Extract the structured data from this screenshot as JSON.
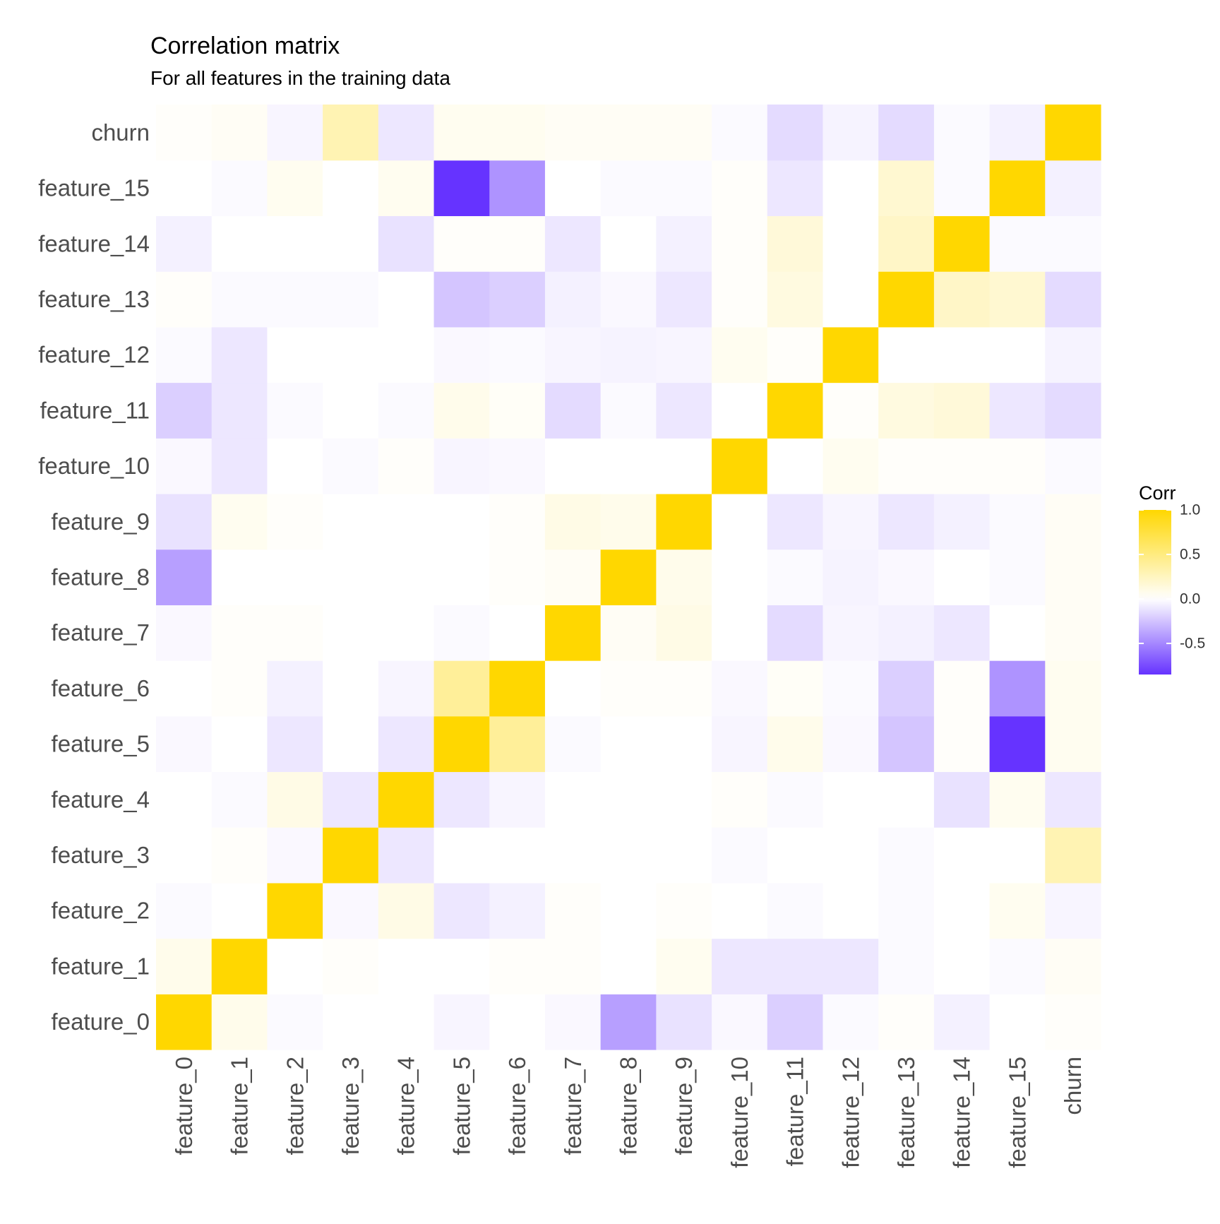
{
  "chart_data": {
    "type": "heatmap",
    "title": "Correlation matrix",
    "subtitle": "For all features in the training data",
    "variables": [
      "feature_0",
      "feature_1",
      "feature_2",
      "feature_3",
      "feature_4",
      "feature_5",
      "feature_6",
      "feature_7",
      "feature_8",
      "feature_9",
      "feature_10",
      "feature_11",
      "feature_12",
      "feature_13",
      "feature_14",
      "feature_15",
      "churn"
    ],
    "matrix": [
      [
        1.0,
        0.08,
        -0.02,
        0.0,
        0.0,
        -0.04,
        0.0,
        -0.03,
        -0.4,
        -0.12,
        -0.03,
        -0.2,
        -0.02,
        0.02,
        -0.06,
        0.0,
        0.02
      ],
      [
        0.08,
        1.0,
        0.0,
        0.02,
        0.0,
        0.0,
        0.02,
        0.02,
        0.0,
        0.06,
        -0.1,
        -0.1,
        -0.1,
        -0.02,
        0.0,
        -0.02,
        0.04
      ],
      [
        -0.02,
        0.0,
        1.0,
        -0.03,
        0.1,
        -0.1,
        -0.06,
        0.02,
        0.0,
        0.02,
        0.0,
        -0.02,
        0.0,
        -0.02,
        0.0,
        0.06,
        -0.04
      ],
      [
        0.0,
        0.02,
        -0.03,
        1.0,
        -0.1,
        0.0,
        0.0,
        0.0,
        0.0,
        0.0,
        -0.02,
        0.0,
        0.0,
        -0.02,
        0.0,
        0.0,
        0.3
      ],
      [
        0.0,
        -0.02,
        0.1,
        -0.1,
        1.0,
        -0.1,
        -0.04,
        0.0,
        0.0,
        0.0,
        0.02,
        -0.02,
        0.0,
        0.0,
        -0.12,
        0.06,
        -0.1
      ],
      [
        -0.03,
        0.0,
        -0.1,
        0.0,
        -0.1,
        1.0,
        0.4,
        -0.02,
        0.0,
        0.0,
        -0.04,
        0.08,
        -0.03,
        -0.24,
        0.02,
        -0.85,
        0.06
      ],
      [
        0.0,
        0.02,
        -0.06,
        0.0,
        -0.04,
        0.4,
        1.0,
        0.0,
        0.02,
        0.02,
        -0.03,
        0.03,
        -0.02,
        -0.2,
        0.02,
        -0.45,
        0.06
      ],
      [
        -0.03,
        0.02,
        0.02,
        0.0,
        0.0,
        -0.02,
        0.0,
        1.0,
        0.04,
        0.1,
        0.0,
        -0.15,
        -0.04,
        -0.06,
        -0.1,
        0.0,
        0.04
      ],
      [
        -0.4,
        0.0,
        0.0,
        0.0,
        0.0,
        0.0,
        0.02,
        0.04,
        1.0,
        0.08,
        0.0,
        -0.02,
        -0.05,
        -0.03,
        0.0,
        -0.02,
        0.04
      ],
      [
        -0.12,
        0.06,
        0.02,
        0.0,
        0.0,
        0.0,
        0.02,
        0.1,
        0.08,
        1.0,
        0.0,
        -0.1,
        -0.04,
        -0.1,
        -0.06,
        -0.02,
        0.04
      ],
      [
        -0.03,
        -0.1,
        0.0,
        -0.02,
        0.02,
        -0.04,
        -0.03,
        0.0,
        0.0,
        0.0,
        1.0,
        0.0,
        0.06,
        0.02,
        0.02,
        0.02,
        -0.02
      ],
      [
        -0.2,
        -0.1,
        -0.02,
        0.0,
        -0.02,
        0.08,
        0.03,
        -0.15,
        -0.02,
        -0.1,
        0.0,
        1.0,
        0.02,
        0.12,
        0.15,
        -0.1,
        -0.15
      ],
      [
        -0.02,
        -0.1,
        0.0,
        0.0,
        0.0,
        -0.03,
        -0.02,
        -0.04,
        -0.05,
        -0.04,
        0.06,
        0.02,
        1.0,
        0.0,
        0.0,
        0.0,
        -0.05
      ],
      [
        0.02,
        -0.02,
        -0.02,
        -0.02,
        0.0,
        -0.24,
        -0.2,
        -0.06,
        -0.03,
        -0.1,
        0.02,
        0.12,
        0.0,
        1.0,
        0.22,
        0.18,
        -0.15
      ],
      [
        -0.06,
        0.0,
        0.0,
        0.0,
        -0.12,
        0.02,
        0.02,
        -0.1,
        0.0,
        -0.06,
        0.02,
        0.15,
        0.0,
        0.22,
        1.0,
        -0.02,
        -0.02
      ],
      [
        0.0,
        -0.02,
        0.06,
        0.0,
        0.06,
        -0.85,
        -0.45,
        0.0,
        -0.02,
        -0.02,
        0.02,
        -0.1,
        0.0,
        0.18,
        -0.02,
        1.0,
        -0.06
      ],
      [
        0.02,
        0.04,
        -0.04,
        0.3,
        -0.1,
        0.06,
        0.06,
        0.04,
        0.04,
        0.04,
        -0.02,
        -0.15,
        -0.05,
        -0.15,
        -0.02,
        -0.06,
        1.0
      ]
    ],
    "colorscale": {
      "low": "#6633ff",
      "mid": "#ffffff",
      "high": "#ffd700",
      "min": -0.85,
      "max": 1.0
    },
    "legend": {
      "title": "Corr",
      "ticks": [
        1.0,
        0.5,
        0.0,
        -0.5
      ],
      "tick_labels": [
        "1.0",
        "0.5",
        "0.0",
        "-0.5"
      ],
      "placement": "right"
    },
    "grid": false
  }
}
